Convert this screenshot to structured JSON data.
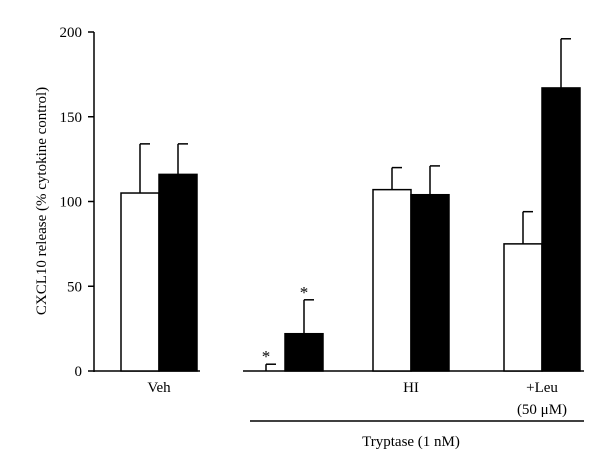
{
  "chart_data": {
    "type": "bar",
    "ylabel": "CXCL10 release (% cytokine control)",
    "ylim": [
      0,
      200
    ],
    "yticks": [
      0,
      50,
      100,
      150,
      200
    ],
    "groups": [
      {
        "label": "Veh",
        "label2": "",
        "bars": [
          {
            "fill": "#ffffff",
            "value": 105,
            "error": 29,
            "star": ""
          },
          {
            "fill": "#000000",
            "value": 116,
            "error": 18,
            "star": ""
          }
        ]
      },
      {
        "label": "",
        "label2": "",
        "bars": [
          {
            "fill": "#ffffff",
            "value": 0,
            "error": 4,
            "star": "*"
          },
          {
            "fill": "#000000",
            "value": 22,
            "error": 20,
            "star": "*"
          }
        ]
      },
      {
        "label": "HI",
        "label2": "",
        "bars": [
          {
            "fill": "#ffffff",
            "value": 107,
            "error": 13,
            "star": ""
          },
          {
            "fill": "#000000",
            "value": 104,
            "error": 17,
            "star": ""
          }
        ]
      },
      {
        "label": "+Leu",
        "label2": "(50 μM)",
        "bars": [
          {
            "fill": "#ffffff",
            "value": 75,
            "error": 19,
            "star": ""
          },
          {
            "fill": "#000000",
            "value": 167,
            "error": 29,
            "star": ""
          }
        ]
      }
    ],
    "bracket_label": "Tryptase (1 nM)",
    "colors": {
      "open_bar": "#ffffff",
      "filled_bar": "#000000",
      "axis": "#000000"
    }
  }
}
